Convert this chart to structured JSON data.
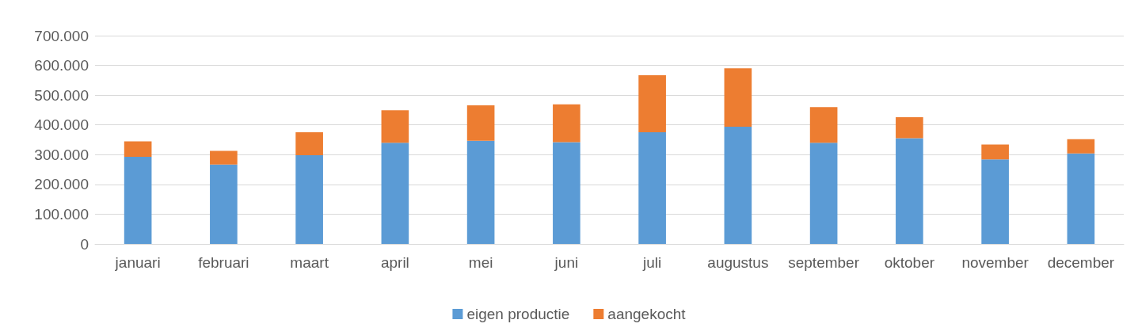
{
  "chart_data": {
    "type": "bar",
    "stacked": true,
    "categories": [
      "januari",
      "februari",
      "maart",
      "april",
      "mei",
      "juni",
      "juli",
      "augustus",
      "september",
      "oktober",
      "november",
      "december"
    ],
    "series": [
      {
        "name": "eigen productie",
        "color": "#5b9bd5",
        "values": [
          293000,
          267000,
          298000,
          340000,
          347000,
          342000,
          375000,
          394000,
          340000,
          355000,
          284000,
          304000
        ]
      },
      {
        "name": "aangekocht",
        "color": "#ed7d31",
        "values": [
          52000,
          46000,
          77000,
          109000,
          119000,
          127000,
          192000,
          196000,
          120000,
          71000,
          50000,
          48000
        ]
      }
    ],
    "ylim": [
      0,
      700000
    ],
    "yticks": [
      {
        "value": 0,
        "label": "0"
      },
      {
        "value": 100000,
        "label": "100.000"
      },
      {
        "value": 200000,
        "label": "200.000"
      },
      {
        "value": 300000,
        "label": "300.000"
      },
      {
        "value": 400000,
        "label": "400.000"
      },
      {
        "value": 500000,
        "label": "500.000"
      },
      {
        "value": 600000,
        "label": "600.000"
      },
      {
        "value": 700000,
        "label": "700.000"
      }
    ],
    "grid": "y",
    "legend": "bottom"
  }
}
